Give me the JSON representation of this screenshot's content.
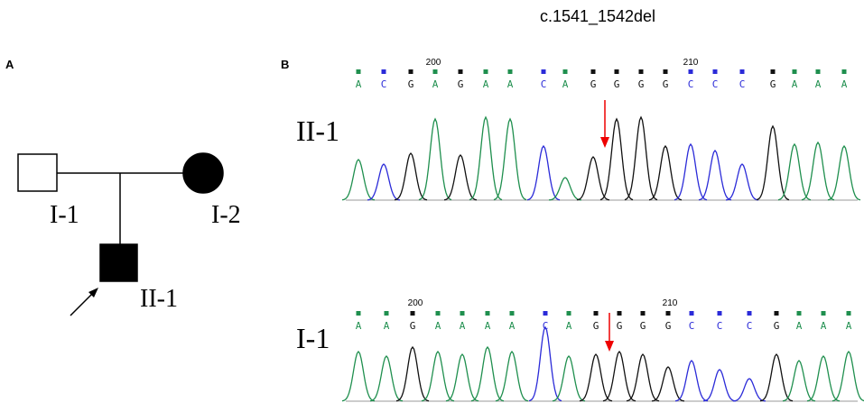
{
  "title": "c.1541_1542del",
  "panel_a": {
    "label": "A",
    "nodes": [
      {
        "label": "I-1"
      },
      {
        "label": "I-2"
      },
      {
        "label": "II-1"
      }
    ]
  },
  "panel_b": {
    "label": "B",
    "traces": [
      {
        "label": "II-1",
        "positions": [
          "200",
          "210"
        ],
        "bases": [
          "A",
          "C",
          "G",
          "A",
          "G",
          "A",
          "A",
          "C",
          "A",
          "G",
          "G",
          "G",
          "G",
          "C",
          "C",
          "C",
          "G",
          "A",
          "A",
          "A"
        ]
      },
      {
        "label": "I-1",
        "positions": [
          "200",
          "210"
        ],
        "bases": [
          "A",
          "A",
          "G",
          "A",
          "A",
          "A",
          "A",
          "C",
          "A",
          "G",
          "G",
          "G",
          "G",
          "C",
          "C",
          "C",
          "G",
          "A",
          "A",
          "A"
        ]
      }
    ]
  }
}
